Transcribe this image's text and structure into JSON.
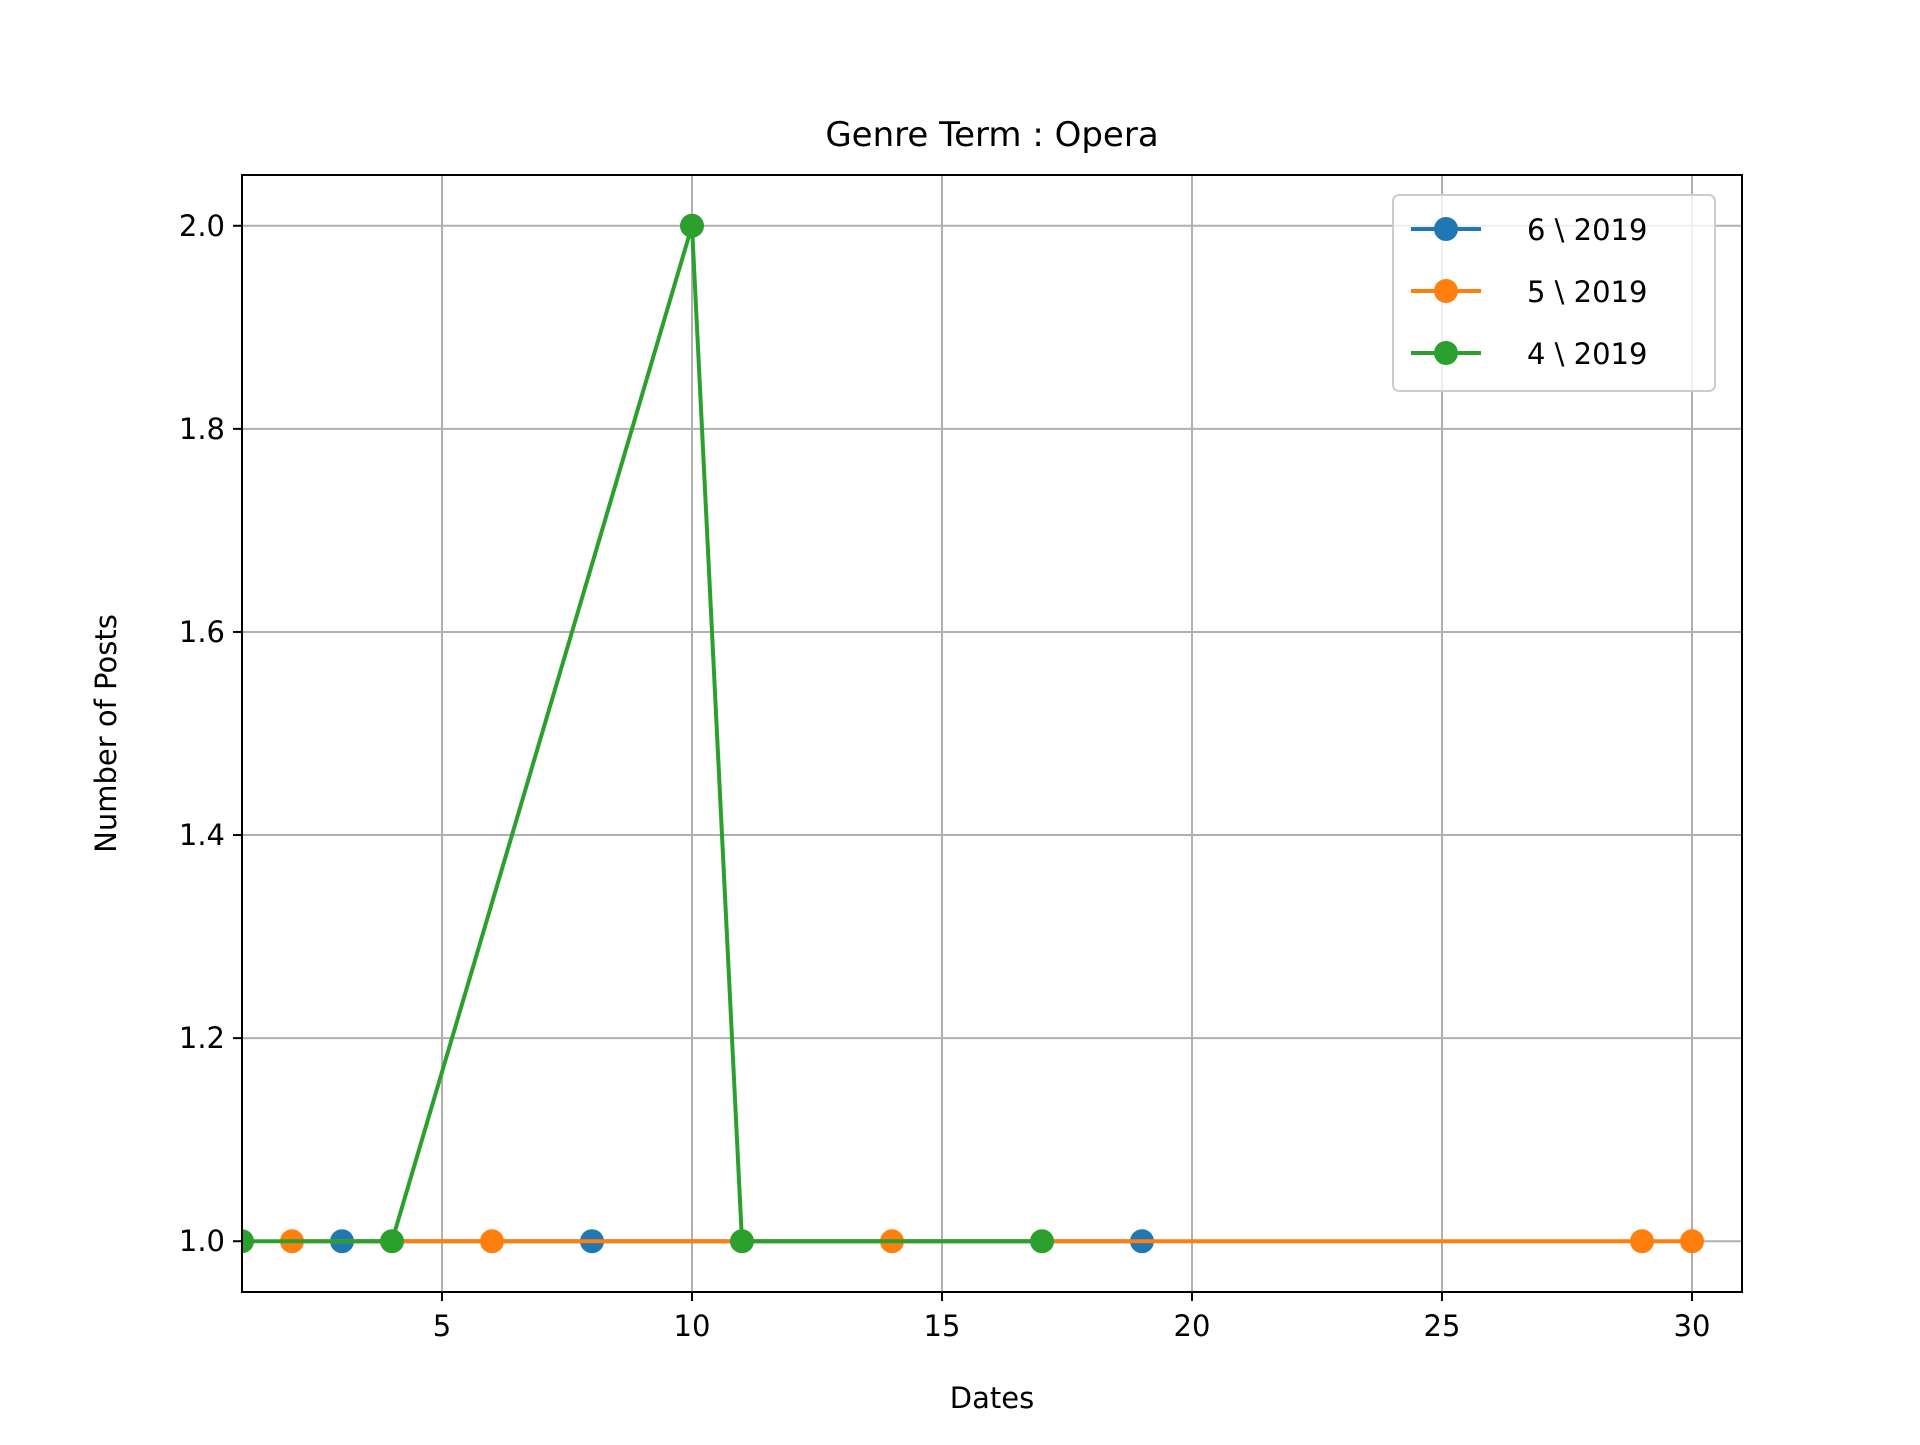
{
  "chart_data": {
    "type": "line",
    "title": "Genre Term : Opera",
    "xlabel": "Dates",
    "ylabel": "Number of Posts",
    "xlim": [
      1,
      31
    ],
    "ylim": [
      0.95,
      2.05
    ],
    "xticks": [
      5,
      10,
      15,
      20,
      25,
      30
    ],
    "yticks": [
      1.0,
      1.2,
      1.4,
      1.6,
      1.8,
      2.0
    ],
    "xtick_labels": [
      "5",
      "10",
      "15",
      "20",
      "25",
      "30"
    ],
    "ytick_labels": [
      "1.0",
      "1.2",
      "1.4",
      "1.6",
      "1.8",
      "2.0"
    ],
    "grid": true,
    "legend_position": "top-right",
    "series": [
      {
        "name": "6 \\ 2019",
        "color": "#1f77b4",
        "x": [
          3,
          8,
          19
        ],
        "y": [
          1,
          1,
          1
        ]
      },
      {
        "name": "5 \\ 2019",
        "color": "#ff7f0e",
        "x": [
          2,
          6,
          14,
          29,
          30
        ],
        "y": [
          1,
          1,
          1,
          1,
          1
        ]
      },
      {
        "name": "4 \\ 2019",
        "color": "#2ca02c",
        "x": [
          1,
          4,
          10,
          11,
          17
        ],
        "y": [
          1,
          1,
          2,
          1,
          1
        ]
      }
    ]
  }
}
